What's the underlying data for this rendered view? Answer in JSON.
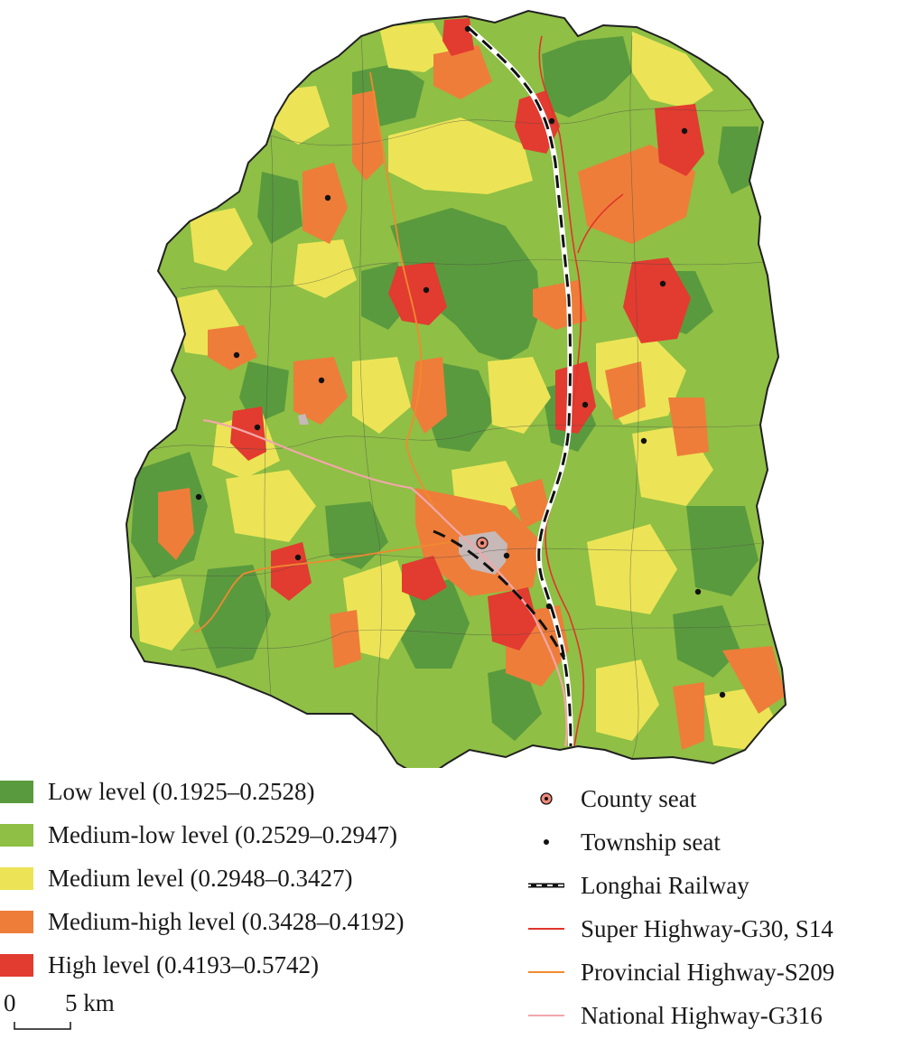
{
  "colors": {
    "low": "#5a9a3e",
    "medium_low": "#8fbf45",
    "medium": "#ece456",
    "medium_high": "#ee7d3a",
    "high": "#e23b30",
    "county_seat_fill": "#c6b9b7",
    "boundary": "#202020",
    "railway": "#111111",
    "super_highway": "#e0352b",
    "provincial_highway": "#f08a30",
    "national_highway": "#f2a7a9"
  },
  "legend_levels": [
    {
      "key": "low",
      "label": "Low level (0.1925–0.2528)"
    },
    {
      "key": "medium_low",
      "label": "Medium-low level (0.2529–0.2947)"
    },
    {
      "key": "medium",
      "label": "Medium level (0.2948–0.3427)"
    },
    {
      "key": "medium_high",
      "label": "Medium-high level (0.3428–0.4192)"
    },
    {
      "key": "high",
      "label": "High level (0.4193–0.5742)"
    }
  ],
  "legend_symbols": [
    {
      "key": "county-seat",
      "label": "County seat"
    },
    {
      "key": "township-seat",
      "label": "Township seat"
    },
    {
      "key": "railway",
      "label": "Longhai Railway"
    },
    {
      "key": "super-highway",
      "label": "Super Highway-G30, S14"
    },
    {
      "key": "provincial-highway",
      "label": "Provincial Highway-S209"
    },
    {
      "key": "national-highway",
      "label": "National Highway-G316"
    }
  ],
  "scale_bar": {
    "start_label": "0",
    "end_label": "5 km"
  }
}
